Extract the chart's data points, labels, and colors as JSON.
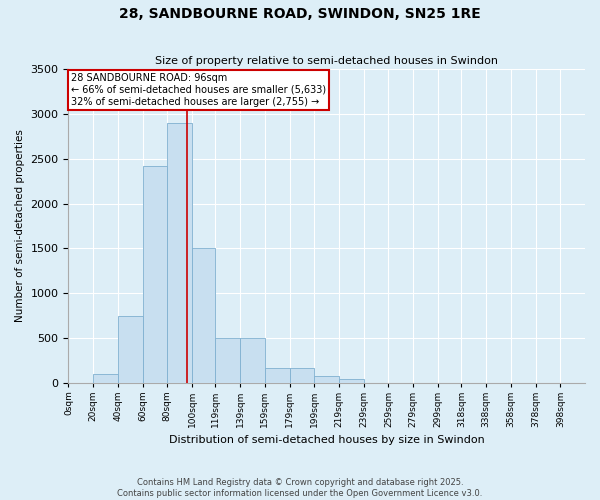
{
  "title_line1": "28, SANDBOURNE ROAD, SWINDON, SN25 1RE",
  "title_line2": "Size of property relative to semi-detached houses in Swindon",
  "xlabel": "Distribution of semi-detached houses by size in Swindon",
  "ylabel": "Number of semi-detached properties",
  "annotation_line1": "28 SANDBOURNE ROAD: 96sqm",
  "annotation_line2": "← 66% of semi-detached houses are smaller (5,633)",
  "annotation_line3": "32% of semi-detached houses are larger (2,755) →",
  "footer_line1": "Contains HM Land Registry data © Crown copyright and database right 2025.",
  "footer_line2": "Contains public sector information licensed under the Open Government Licence v3.0.",
  "bar_left_edges": [
    0,
    20,
    40,
    60,
    80,
    100,
    119,
    139,
    159,
    179,
    199,
    219,
    239,
    259,
    279,
    299,
    318,
    338,
    358,
    378
  ],
  "bar_heights": [
    3,
    100,
    750,
    2420,
    2900,
    1500,
    500,
    500,
    175,
    175,
    80,
    50,
    0,
    0,
    0,
    0,
    0,
    0,
    0,
    0
  ],
  "bar_widths": [
    20,
    20,
    20,
    20,
    20,
    19,
    20,
    20,
    20,
    20,
    20,
    20,
    20,
    20,
    20,
    19,
    20,
    20,
    20,
    20
  ],
  "bar_color": "#c8dff0",
  "bar_edge_color": "#7fb0d0",
  "property_line_x": 96,
  "property_line_color": "#cc0000",
  "xlim": [
    0,
    418
  ],
  "ylim": [
    0,
    3500
  ],
  "yticks": [
    0,
    500,
    1000,
    1500,
    2000,
    2500,
    3000,
    3500
  ],
  "xtick_labels": [
    "0sqm",
    "20sqm",
    "40sqm",
    "60sqm",
    "80sqm",
    "100sqm",
    "119sqm",
    "139sqm",
    "159sqm",
    "179sqm",
    "199sqm",
    "219sqm",
    "239sqm",
    "259sqm",
    "279sqm",
    "299sqm",
    "318sqm",
    "338sqm",
    "358sqm",
    "378sqm",
    "398sqm"
  ],
  "xtick_positions": [
    0,
    20,
    40,
    60,
    80,
    100,
    119,
    139,
    159,
    179,
    199,
    219,
    239,
    259,
    279,
    299,
    318,
    338,
    358,
    378,
    398
  ],
  "background_color": "#ddeef7",
  "plot_bg_color": "#ddeef7",
  "annotation_box_facecolor": "#ffffff",
  "annotation_box_edgecolor": "#cc0000",
  "grid_color": "#ffffff"
}
